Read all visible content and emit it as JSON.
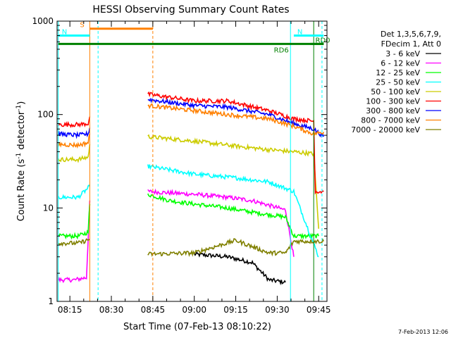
{
  "chart_data": {
    "type": "line",
    "title": "HESSI Observing Summary Count Rates",
    "xlabel": "Start Time (07-Feb-13 08:10:22)",
    "ylabel_main": "Count Rate (s",
    "ylabel_sup1": "-1",
    "ylabel_mid": " detector",
    "ylabel_sup2": "-1",
    "ylabel_end": ")",
    "y_scale": "log",
    "ylim": [
      1,
      1000
    ],
    "xlim": [
      "08:10:22",
      "09:48:00"
    ],
    "x_tick_labels": [
      "08:15",
      "08:30",
      "08:45",
      "09:00",
      "09:15",
      "09:30",
      "09:45"
    ],
    "y_tick_labels": [
      "1",
      "10",
      "100",
      "1000"
    ],
    "legend_header": [
      "Det 1,3,5,6,7,9,",
      "FDecim 1, Att 0"
    ],
    "legend_position": "right",
    "series": [
      {
        "name": "3 - 6 keV",
        "color": "#000000",
        "segments": [
          [
            [
              9.0,
              3.2
            ],
            [
              9.2,
              3.0
            ],
            [
              9.35,
              2.6
            ],
            [
              9.45,
              1.7
            ],
            [
              9.55,
              1.6
            ]
          ]
        ]
      },
      {
        "name": "6 - 12 keV",
        "color": "#ff00ff",
        "segments": [
          [
            [
              8.18,
              1.7
            ],
            [
              8.28,
              1.7
            ],
            [
              8.35,
              1.8
            ],
            [
              8.37,
              12
            ]
          ],
          [
            [
              8.72,
              15
            ],
            [
              9.0,
              14
            ],
            [
              9.2,
              13
            ],
            [
              9.35,
              12
            ],
            [
              9.55,
              9.5
            ],
            [
              9.6,
              3
            ]
          ]
        ]
      },
      {
        "name": "12 - 25 keV",
        "color": "#00ff00",
        "segments": [
          [
            [
              8.18,
              5
            ],
            [
              8.3,
              5
            ],
            [
              8.36,
              5.5
            ],
            [
              8.37,
              11
            ]
          ],
          [
            [
              8.72,
              14
            ],
            [
              8.85,
              12
            ],
            [
              9.0,
              11
            ],
            [
              9.2,
              10
            ],
            [
              9.35,
              9
            ],
            [
              9.55,
              8
            ],
            [
              9.6,
              5
            ],
            [
              9.75,
              5
            ]
          ]
        ]
      },
      {
        "name": "25 - 50 keV",
        "color": "#00ffff",
        "segments": [
          [
            [
              8.18,
              13
            ],
            [
              8.3,
              13
            ],
            [
              8.37,
              17
            ]
          ],
          [
            [
              8.72,
              28
            ],
            [
              9.0,
              23
            ],
            [
              9.25,
              21
            ],
            [
              9.45,
              19
            ],
            [
              9.6,
              15
            ],
            [
              9.75,
              3
            ]
          ]
        ]
      },
      {
        "name": "50 - 100 keV",
        "color": "#cccc00",
        "segments": [
          [
            [
              8.18,
              33
            ],
            [
              8.3,
              33
            ],
            [
              8.36,
              35
            ],
            [
              8.37,
              48
            ]
          ],
          [
            [
              8.72,
              58
            ],
            [
              9.0,
              52
            ],
            [
              9.2,
              47
            ],
            [
              9.45,
              42
            ],
            [
              9.6,
              40
            ],
            [
              9.72,
              38
            ],
            [
              9.75,
              6
            ]
          ]
        ]
      },
      {
        "name": "100 - 300 keV",
        "color": "#ff0000",
        "segments": [
          [
            [
              8.18,
              78
            ],
            [
              8.3,
              78
            ],
            [
              8.36,
              80
            ],
            [
              8.37,
              95
            ]
          ],
          [
            [
              8.72,
              165
            ],
            [
              9.0,
              140
            ],
            [
              9.2,
              140
            ],
            [
              9.45,
              110
            ],
            [
              9.6,
              90
            ],
            [
              9.72,
              85
            ],
            [
              9.73,
              15
            ],
            [
              9.78,
              15
            ]
          ]
        ]
      },
      {
        "name": "300 - 800 keV",
        "color": "#0000ff",
        "segments": [
          [
            [
              8.18,
              62
            ],
            [
              8.3,
              60
            ],
            [
              8.36,
              62
            ],
            [
              8.37,
              72
            ]
          ],
          [
            [
              8.72,
              145
            ],
            [
              9.0,
              125
            ],
            [
              9.2,
              120
            ],
            [
              9.45,
              100
            ],
            [
              9.6,
              80
            ],
            [
              9.72,
              70
            ],
            [
              9.78,
              58
            ]
          ]
        ]
      },
      {
        "name": "800 - 7000 keV",
        "color": "#ff8000",
        "segments": [
          [
            [
              8.18,
              48
            ],
            [
              8.3,
              47
            ],
            [
              8.36,
              50
            ],
            [
              8.37,
              62
            ]
          ],
          [
            [
              8.72,
              125
            ],
            [
              9.0,
              110
            ],
            [
              9.2,
              100
            ],
            [
              9.45,
              90
            ],
            [
              9.6,
              75
            ],
            [
              9.72,
              62
            ],
            [
              9.78,
              65
            ]
          ]
        ]
      },
      {
        "name": "7000 - 20000 keV",
        "color": "#808000",
        "segments": [
          [
            [
              8.18,
              4.2
            ],
            [
              8.3,
              4.2
            ],
            [
              8.37,
              4.6
            ]
          ],
          [
            [
              8.72,
              3.2
            ],
            [
              9.0,
              3.3
            ],
            [
              9.25,
              4.5
            ],
            [
              9.45,
              3.3
            ],
            [
              9.55,
              3.3
            ],
            [
              9.6,
              4.4
            ],
            [
              9.78,
              4.4
            ]
          ]
        ]
      }
    ],
    "flags": [
      {
        "label": "S",
        "color": "#ff8000",
        "y": 830,
        "start": 8.37,
        "end": 8.75
      },
      {
        "label": "N",
        "color": "#00ffff",
        "y": 700,
        "start": 8.18,
        "end": 8.37
      },
      {
        "label": "N",
        "color": "#00ffff",
        "y": 700,
        "start": 9.6,
        "end": 9.78
      },
      {
        "label": "RD6",
        "color": "#008000",
        "y": 570,
        "start": 8.18,
        "end": 9.78
      },
      {
        "label": "RD0",
        "color": "#008000",
        "y": 570,
        "start": 9.7,
        "end": 9.78
      }
    ],
    "vlines": [
      {
        "x": 8.18,
        "style": "solid",
        "color": "#00ffff"
      },
      {
        "x": 8.37,
        "style": "solid",
        "color": "#ff8000"
      },
      {
        "x": 8.42,
        "style": "dashed",
        "color": "#00ffff"
      },
      {
        "x": 8.75,
        "style": "dashed",
        "color": "#ff8000"
      },
      {
        "x": 9.58,
        "style": "solid",
        "color": "#00ffff"
      },
      {
        "x": 9.72,
        "style": "solid",
        "color": "#008000"
      },
      {
        "x": 9.77,
        "style": "dashed",
        "color": "#00ffff"
      }
    ]
  },
  "footer_timestamp": "7-Feb-2013 12:06"
}
